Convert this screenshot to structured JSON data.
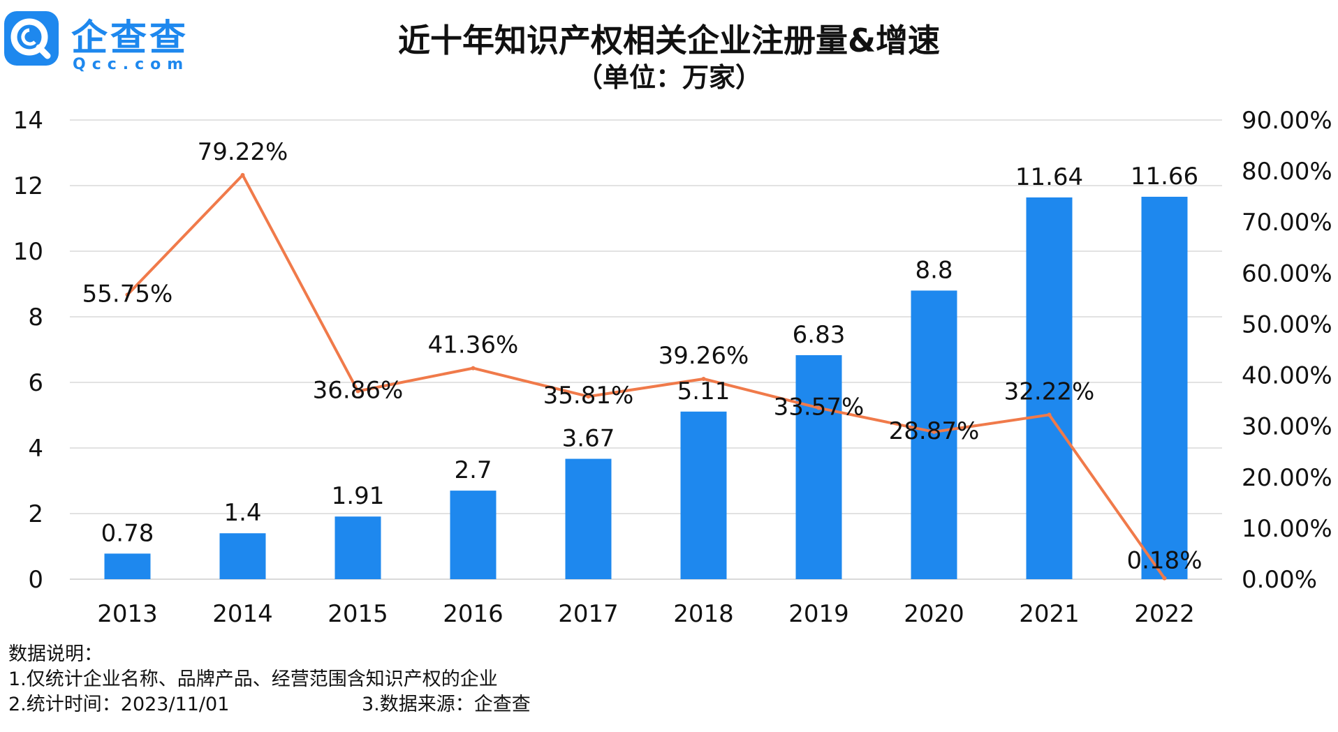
{
  "logo": {
    "name": "企查查",
    "domain": "Qcc.com",
    "brand_color": "#1e88ee"
  },
  "chart_data": {
    "type": "bar",
    "title": "近十年知识产权相关企业注册量&增速",
    "subtitle": "（单位：万家）",
    "categories": [
      "2013",
      "2014",
      "2015",
      "2016",
      "2017",
      "2018",
      "2019",
      "2020",
      "2021",
      "2022"
    ],
    "series": [
      {
        "type": "bar",
        "axis": "left",
        "color": "#1e88ee",
        "values": [
          0.78,
          1.4,
          1.91,
          2.7,
          3.67,
          5.11,
          6.83,
          8.8,
          11.64,
          11.66
        ],
        "labels": [
          "0.78",
          "1.4",
          "1.91",
          "2.7",
          "3.67",
          "5.11",
          "6.83",
          "8.8",
          "11.64",
          "11.66"
        ]
      },
      {
        "type": "line",
        "axis": "right",
        "color": "#f07a4a",
        "values": [
          55.75,
          79.22,
          36.86,
          41.36,
          35.81,
          39.26,
          33.57,
          28.87,
          32.22,
          0.18
        ],
        "labels": [
          "55.75%",
          "79.22%",
          "36.86%",
          "41.36%",
          "35.81%",
          "39.26%",
          "33.57%",
          "28.87%",
          "32.22%",
          "0.18%"
        ]
      }
    ],
    "y_left": {
      "range": [
        0,
        14
      ],
      "ticks": [
        "0",
        "2",
        "4",
        "6",
        "8",
        "10",
        "12",
        "14"
      ]
    },
    "y_right": {
      "range": [
        0,
        90
      ],
      "ticks": [
        "0.00%",
        "10.00%",
        "20.00%",
        "30.00%",
        "40.00%",
        "50.00%",
        "60.00%",
        "70.00%",
        "80.00%",
        "90.00%"
      ]
    },
    "grid": true,
    "legend": "none",
    "gridline_color": "#d9d9d9"
  },
  "notes": {
    "heading": "数据说明：",
    "line1": "1.仅统计企业名称、品牌产品、经营范围含知识产权的企业",
    "line2_left": "2.统计时间：2023/11/01",
    "line2_right": "3.数据来源：企查查"
  }
}
